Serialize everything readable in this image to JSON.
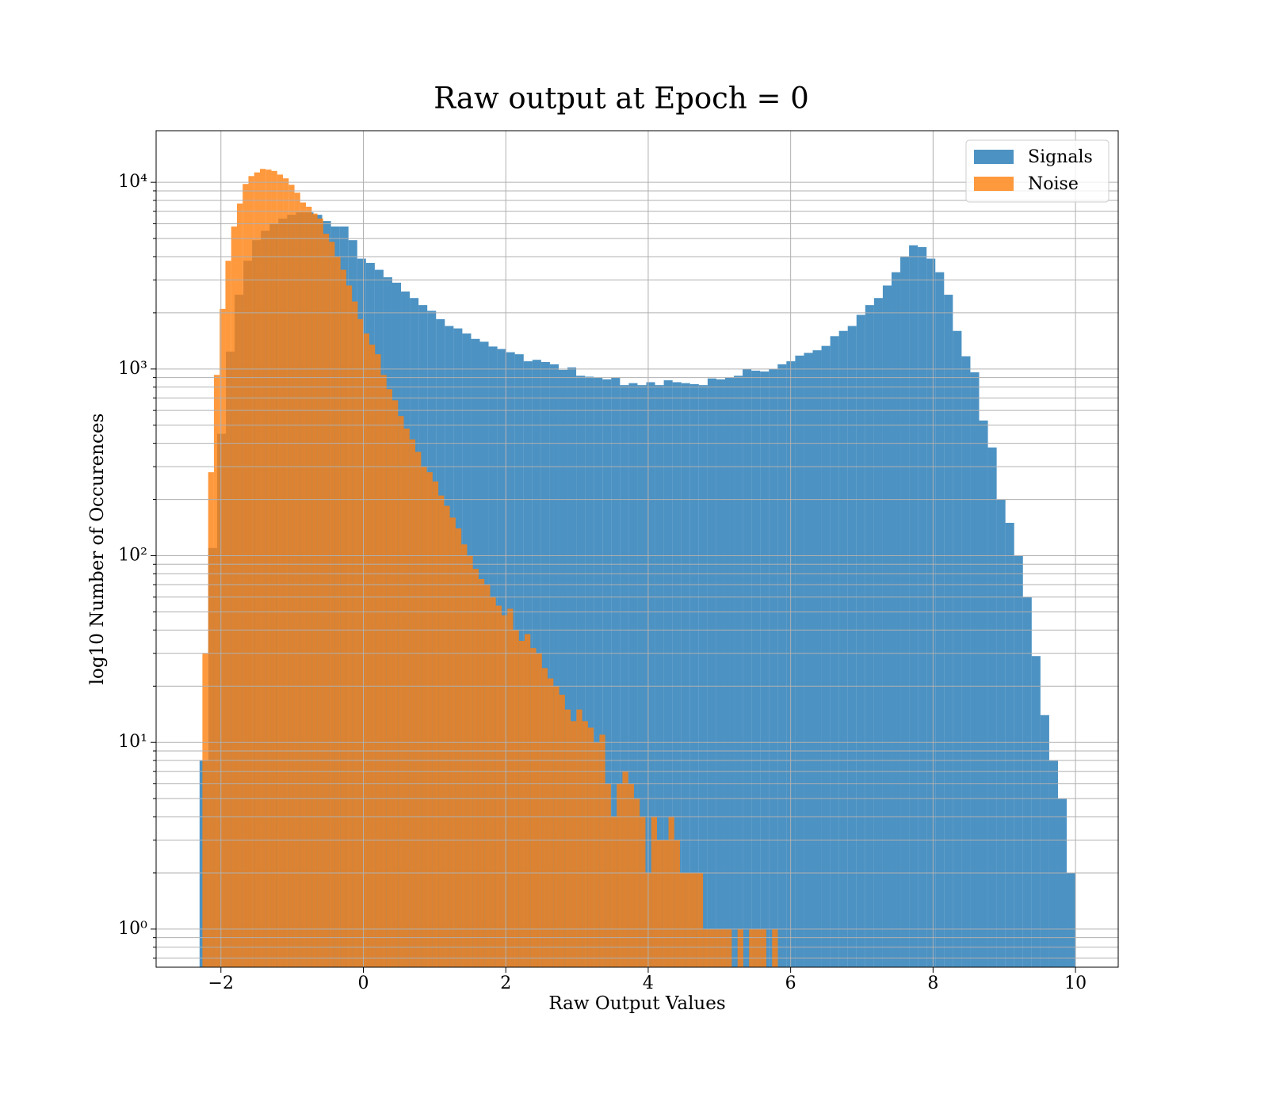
{
  "chart_data": {
    "type": "histogram",
    "title": "Raw output at Epoch = 0",
    "xlabel": "Raw Output Values",
    "ylabel": "log10 Number of Occurences",
    "xlim": [
      -2.91,
      10.6
    ],
    "ylim": [
      0.625,
      18900
    ],
    "yscale": "log",
    "grid": true,
    "legend": "upper right",
    "xticks": [
      {
        "value": -2,
        "label": "−2"
      },
      0,
      2,
      4,
      6,
      8,
      10
    ],
    "yticks": [
      {
        "value": 1,
        "label": "10⁰"
      },
      {
        "value": 10,
        "label": "10¹"
      },
      {
        "value": 100,
        "label": "10²"
      },
      {
        "value": 1000,
        "label": "10³"
      },
      {
        "value": 10000,
        "label": "10⁴"
      }
    ],
    "yminorticks": [
      0.7,
      0.8,
      0.9,
      2,
      3,
      4,
      5,
      6,
      7,
      8,
      9,
      20,
      30,
      40,
      50,
      60,
      70,
      80,
      90,
      200,
      300,
      400,
      500,
      600,
      700,
      800,
      900,
      2000,
      3000,
      4000,
      5000,
      6000,
      7000,
      8000,
      9000
    ],
    "series": [
      {
        "name": "Signals",
        "color": "#1f77b4",
        "bins": [
          -2.3,
          -2.177,
          -2.054,
          -1.931,
          -1.808,
          -1.685,
          -1.562,
          -1.439,
          -1.316,
          -1.193,
          -1.07,
          -0.947,
          -0.824,
          -0.701,
          -0.578,
          -0.455,
          -0.332,
          -0.209,
          -0.086,
          0.037,
          0.16,
          0.283,
          0.406,
          0.529,
          0.652,
          0.775,
          0.898,
          1.021,
          1.144,
          1.267,
          1.39,
          1.513,
          1.636,
          1.759,
          1.882,
          2.005,
          2.128,
          2.251,
          2.374,
          2.497,
          2.62,
          2.743,
          2.866,
          2.989,
          3.112,
          3.235,
          3.358,
          3.481,
          3.604,
          3.727,
          3.85,
          3.973,
          4.096,
          4.219,
          4.342,
          4.465,
          4.588,
          4.711,
          4.834,
          4.957,
          5.08,
          5.203,
          5.326,
          5.449,
          5.572,
          5.695,
          5.818,
          5.941,
          6.064,
          6.187,
          6.31,
          6.433,
          6.556,
          6.679,
          6.802,
          6.925,
          7.048,
          7.171,
          7.294,
          7.417,
          7.54,
          7.663,
          7.786,
          7.909,
          8.032,
          8.155,
          8.278,
          8.401,
          8.524,
          8.647,
          8.77,
          8.893,
          9.016,
          9.139,
          9.262,
          9.385,
          9.508,
          9.631,
          9.754,
          9.877,
          10.0
        ],
        "values": [
          8,
          110,
          450,
          1240,
          2500,
          3800,
          4900,
          5500,
          6000,
          6400,
          6700,
          6900,
          6900,
          6700,
          6200,
          5800,
          5800,
          4900,
          3900,
          3700,
          3400,
          3100,
          2900,
          2600,
          2400,
          2200,
          2050,
          1850,
          1700,
          1650,
          1550,
          1450,
          1400,
          1320,
          1280,
          1230,
          1200,
          1100,
          1120,
          1090,
          1060,
          990,
          1020,
          920,
          910,
          900,
          880,
          900,
          820,
          840,
          820,
          850,
          820,
          870,
          850,
          840,
          830,
          820,
          890,
          880,
          900,
          920,
          1000,
          980,
          970,
          1000,
          1060,
          1100,
          1180,
          1220,
          1260,
          1330,
          1500,
          1600,
          1700,
          1950,
          2200,
          2400,
          2800,
          3300,
          4000,
          4600,
          4500,
          3900,
          3300,
          2500,
          1600,
          1170,
          960,
          530,
          380,
          200,
          150,
          100,
          60,
          29,
          14,
          8,
          5,
          2
        ]
      },
      {
        "name": "Noise",
        "color": "#ff7f0e",
        "bins": [
          -2.26,
          -2.1792,
          -2.0984,
          -2.0176,
          -1.9368,
          -1.856,
          -1.7752,
          -1.6944,
          -1.6136,
          -1.5328,
          -1.452,
          -1.3712,
          -1.2904,
          -1.2096,
          -1.1288,
          -1.048,
          -0.9672,
          -0.8864,
          -0.8056,
          -0.7248,
          -0.644,
          -0.5632,
          -0.4824,
          -0.4016,
          -0.3208,
          -0.24,
          -0.1592,
          -0.0784,
          0.0024,
          0.0832,
          0.164,
          0.2448,
          0.3256,
          0.4064,
          0.4872,
          0.568,
          0.6488,
          0.7296,
          0.8104,
          0.8912,
          0.972,
          1.0528,
          1.1336,
          1.2144,
          1.2952,
          1.376,
          1.4568,
          1.5376,
          1.6184,
          1.6992,
          1.78,
          1.8608,
          1.9416,
          2.0224,
          2.1032,
          2.184,
          2.2648,
          2.3456,
          2.4264,
          2.5072,
          2.588,
          2.6688,
          2.7496,
          2.8304,
          2.9112,
          2.992,
          3.0728,
          3.1536,
          3.2344,
          3.3152,
          3.396,
          3.4768,
          3.5576,
          3.6384,
          3.7192,
          3.8,
          3.8808,
          3.9616,
          4.0424,
          4.1232,
          4.204,
          4.2848,
          4.3656,
          4.4464,
          4.5272,
          4.608,
          4.6888,
          4.7696,
          4.8504,
          4.9312,
          5.012,
          5.0928,
          5.1736,
          5.2544,
          5.3352,
          5.416,
          5.4968,
          5.5776,
          5.6584,
          5.7392,
          5.82
        ],
        "values": [
          30,
          280,
          930,
          2100,
          3800,
          5800,
          7700,
          9800,
          10800,
          11300,
          11800,
          11700,
          11500,
          11000,
          10500,
          9700,
          8800,
          7800,
          7400,
          6800,
          6400,
          5300,
          4800,
          4000,
          3400,
          2800,
          2300,
          1850,
          1550,
          1350,
          1200,
          930,
          780,
          680,
          560,
          480,
          420,
          360,
          300,
          280,
          250,
          210,
          185,
          160,
          140,
          115,
          100,
          85,
          75,
          70,
          60,
          54,
          48,
          52,
          40,
          35,
          38,
          32,
          30,
          25,
          22,
          20,
          18,
          15,
          13,
          15,
          13,
          12,
          10,
          11,
          6,
          4,
          6,
          7,
          6,
          5,
          4,
          2,
          4,
          3,
          3,
          4,
          3,
          2,
          2,
          2,
          2,
          1,
          1,
          1,
          1,
          1,
          0,
          1,
          0,
          1,
          1,
          1,
          0,
          1
        ]
      }
    ]
  }
}
